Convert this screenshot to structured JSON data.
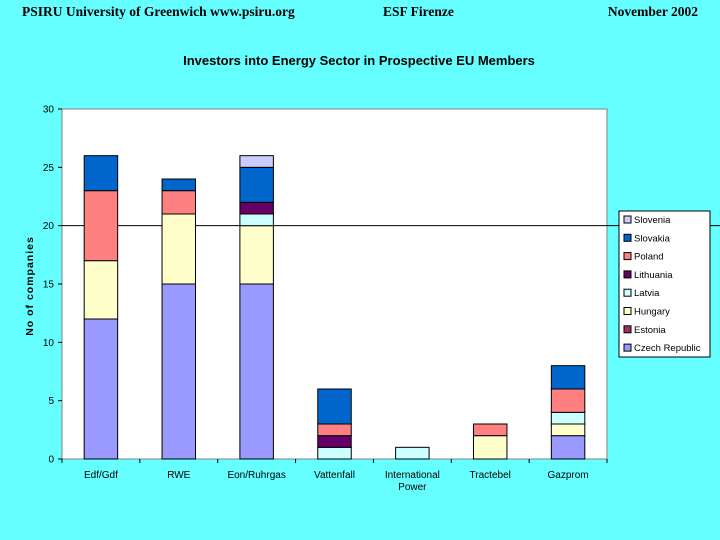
{
  "header": {
    "left": "PSIRU University of Greenwich   www.psiru.org",
    "center": "ESF Firenze",
    "right": "November  2002"
  },
  "chart_data": {
    "type": "bar",
    "stacked": true,
    "title": "Investors into Energy Sector in Prospective EU Members",
    "xlabel": "",
    "ylabel": "No of companies",
    "ylim": [
      0,
      30
    ],
    "yticks": [
      0,
      5,
      10,
      15,
      20,
      25,
      30
    ],
    "grid": false,
    "reference_line": 20,
    "legend_position": "right",
    "categories": [
      "Edf/Gdf",
      "RWE",
      "Eon/Ruhrgas",
      "Vattenfall",
      "International Power",
      "Tractebel",
      "Gazprom"
    ],
    "series": [
      {
        "name": "Czech Republic",
        "color": "#9999FF",
        "values": [
          12,
          15,
          15,
          0,
          0,
          0,
          2
        ]
      },
      {
        "name": "Estonia",
        "color": "#993366",
        "values": [
          0,
          0,
          0,
          0,
          0,
          0,
          0
        ]
      },
      {
        "name": "Hungary",
        "color": "#FFFFCC",
        "values": [
          5,
          6,
          5,
          0,
          0,
          2,
          1
        ]
      },
      {
        "name": "Latvia",
        "color": "#CCFFFF",
        "values": [
          0,
          0,
          1,
          1,
          1,
          0,
          1
        ]
      },
      {
        "name": "Lithuania",
        "color": "#660066",
        "values": [
          0,
          0,
          1,
          1,
          0,
          0,
          0
        ]
      },
      {
        "name": "Poland",
        "color": "#FF8080",
        "values": [
          6,
          2,
          0,
          1,
          0,
          1,
          2
        ]
      },
      {
        "name": "Slovakia",
        "color": "#0066CC",
        "values": [
          3,
          1,
          3,
          3,
          0,
          0,
          2
        ]
      },
      {
        "name": "Slovenia",
        "color": "#CCCCFF",
        "values": [
          0,
          0,
          1,
          0,
          0,
          0,
          0
        ]
      }
    ]
  }
}
